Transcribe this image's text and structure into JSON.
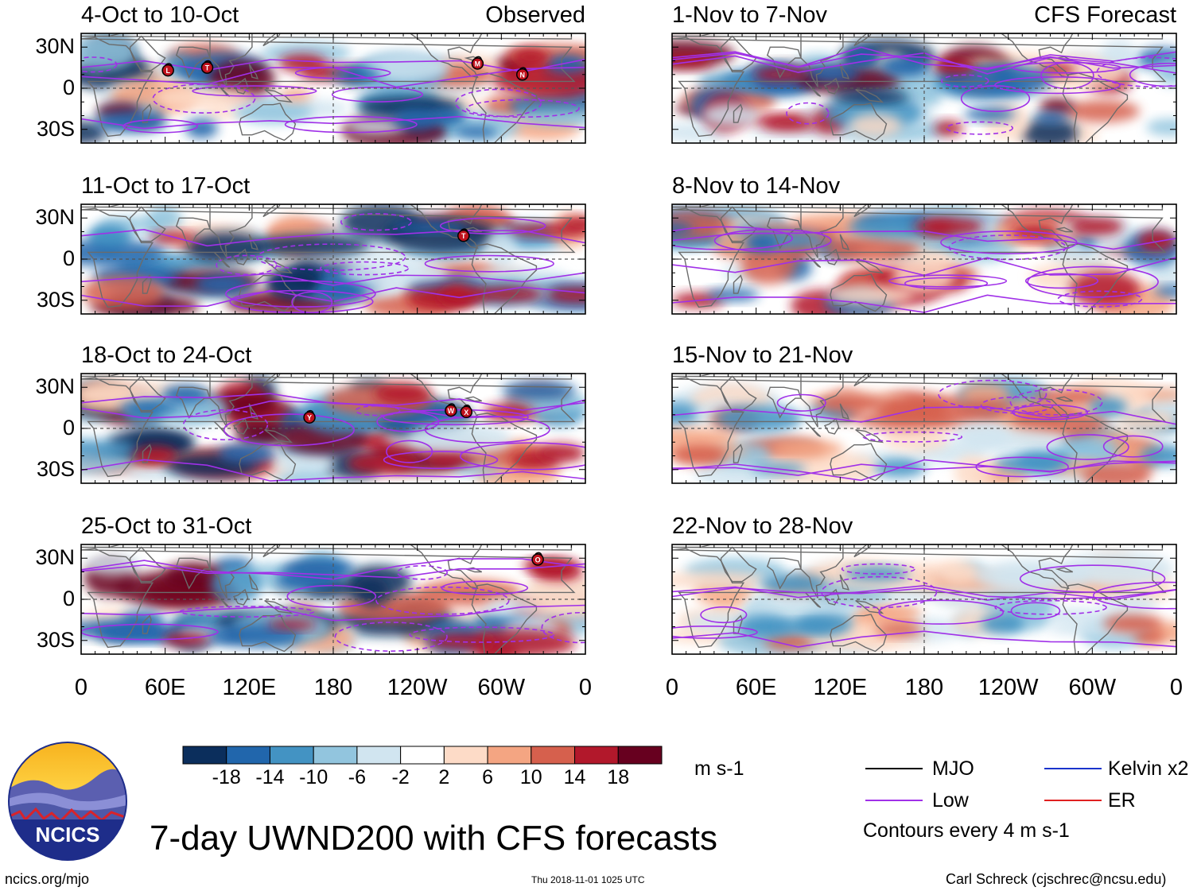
{
  "figure_title": "7-day UWND200 with CFS forecasts",
  "logo": {
    "text": "NCICS"
  },
  "footer": {
    "url": "ncics.org/mjo",
    "timestamp": "Thu 2018-11-01 1025 UTC",
    "credit": "Carl Schreck (cjschrec@ncsu.edu)"
  },
  "colors": {
    "mjo": "#000000",
    "kelvin": "#1a33cc",
    "low": "#a030e8",
    "er": "#e02020",
    "land": "#6b6b6b"
  },
  "chart_data": {
    "type": "heatmap",
    "variable": "200-hPa zonal wind anomaly (7-day)",
    "lat_ticks": [
      "30N",
      "0",
      "30S"
    ],
    "lon_ticks": [
      "0",
      "60E",
      "120E",
      "180",
      "120W",
      "60W",
      "0"
    ],
    "panels": [
      {
        "title": "4-Oct to 10-Oct",
        "tag": "Observed",
        "column": "observed",
        "storms": [
          "L",
          "T",
          "M",
          "N"
        ]
      },
      {
        "title": "11-Oct to 17-Oct",
        "tag": "",
        "column": "observed",
        "storms": [
          "T"
        ]
      },
      {
        "title": "18-Oct to 24-Oct",
        "tag": "",
        "column": "observed",
        "storms": [
          "Y",
          "W",
          "X"
        ]
      },
      {
        "title": "25-Oct to 31-Oct",
        "tag": "",
        "column": "observed",
        "storms": [
          "O"
        ]
      },
      {
        "title": "1-Nov to 7-Nov",
        "tag": "CFS Forecast",
        "column": "forecast",
        "storms": []
      },
      {
        "title": "8-Nov to 14-Nov",
        "tag": "",
        "column": "forecast",
        "storms": []
      },
      {
        "title": "15-Nov to 21-Nov",
        "tag": "",
        "column": "forecast",
        "storms": []
      },
      {
        "title": "22-Nov to 28-Nov",
        "tag": "",
        "column": "forecast",
        "storms": []
      }
    ],
    "colorbar": {
      "units": "m s-1",
      "tick_labels": [
        "-18",
        "-14",
        "-10",
        "-6",
        "-2",
        "2",
        "6",
        "10",
        "14",
        "18"
      ],
      "colors": [
        "#0b2e5c",
        "#2166ac",
        "#4393c3",
        "#92c5de",
        "#d1e5f0",
        "#ffffff",
        "#fddbc7",
        "#f4a582",
        "#d6604d",
        "#b2182b",
        "#67001f"
      ]
    },
    "legend": {
      "items": [
        {
          "label": "MJO",
          "color_key": "mjo"
        },
        {
          "label": "Kelvin x2",
          "color_key": "kelvin"
        },
        {
          "label": "Low",
          "color_key": "low"
        },
        {
          "label": "ER",
          "color_key": "er"
        }
      ],
      "note": "Contours every 4 m s-1"
    }
  }
}
